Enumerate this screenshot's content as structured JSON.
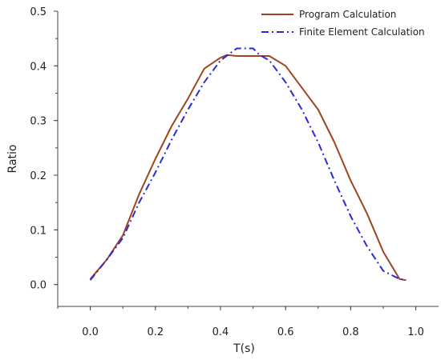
{
  "chart_data": {
    "type": "line",
    "title": "",
    "xlabel": "T(s)",
    "ylabel": "Ratio",
    "xlim": [
      -0.1,
      1.07
    ],
    "ylim": [
      -0.04,
      0.5
    ],
    "xticks": [
      0.0,
      0.2,
      0.4,
      0.6,
      0.8,
      1.0
    ],
    "xtick_labels": [
      "0.0",
      "0.2",
      "0.4",
      "0.6",
      "0.8",
      "1.0"
    ],
    "yticks": [
      0.0,
      0.1,
      0.2,
      0.3,
      0.4,
      0.5
    ],
    "ytick_labels": [
      "0.0",
      "0.1",
      "0.2",
      "0.3",
      "0.4",
      "0.5"
    ],
    "grid": false,
    "legend_position": "top-right",
    "series": [
      {
        "name": "Program Calculation",
        "color": "#a0451e",
        "style": "solid",
        "x": [
          0.0,
          0.05,
          0.1,
          0.15,
          0.2,
          0.25,
          0.3,
          0.35,
          0.4,
          0.42,
          0.45,
          0.5,
          0.55,
          0.6,
          0.65,
          0.7,
          0.75,
          0.8,
          0.85,
          0.9,
          0.95,
          0.97
        ],
        "y": [
          0.01,
          0.045,
          0.09,
          0.165,
          0.23,
          0.29,
          0.34,
          0.395,
          0.415,
          0.42,
          0.418,
          0.418,
          0.418,
          0.4,
          0.36,
          0.32,
          0.26,
          0.19,
          0.13,
          0.06,
          0.01,
          0.008
        ]
      },
      {
        "name": "Finite Element Calculation",
        "color": "#2a2ad8",
        "style": "dashdot",
        "x": [
          0.0,
          0.05,
          0.1,
          0.15,
          0.2,
          0.25,
          0.3,
          0.35,
          0.4,
          0.45,
          0.5,
          0.52,
          0.55,
          0.6,
          0.65,
          0.7,
          0.75,
          0.8,
          0.85,
          0.9,
          0.95,
          0.97
        ],
        "y": [
          0.008,
          0.045,
          0.085,
          0.15,
          0.205,
          0.265,
          0.32,
          0.37,
          0.41,
          0.432,
          0.432,
          0.42,
          0.41,
          0.37,
          0.32,
          0.26,
          0.19,
          0.125,
          0.07,
          0.025,
          0.01,
          0.008
        ]
      }
    ]
  }
}
